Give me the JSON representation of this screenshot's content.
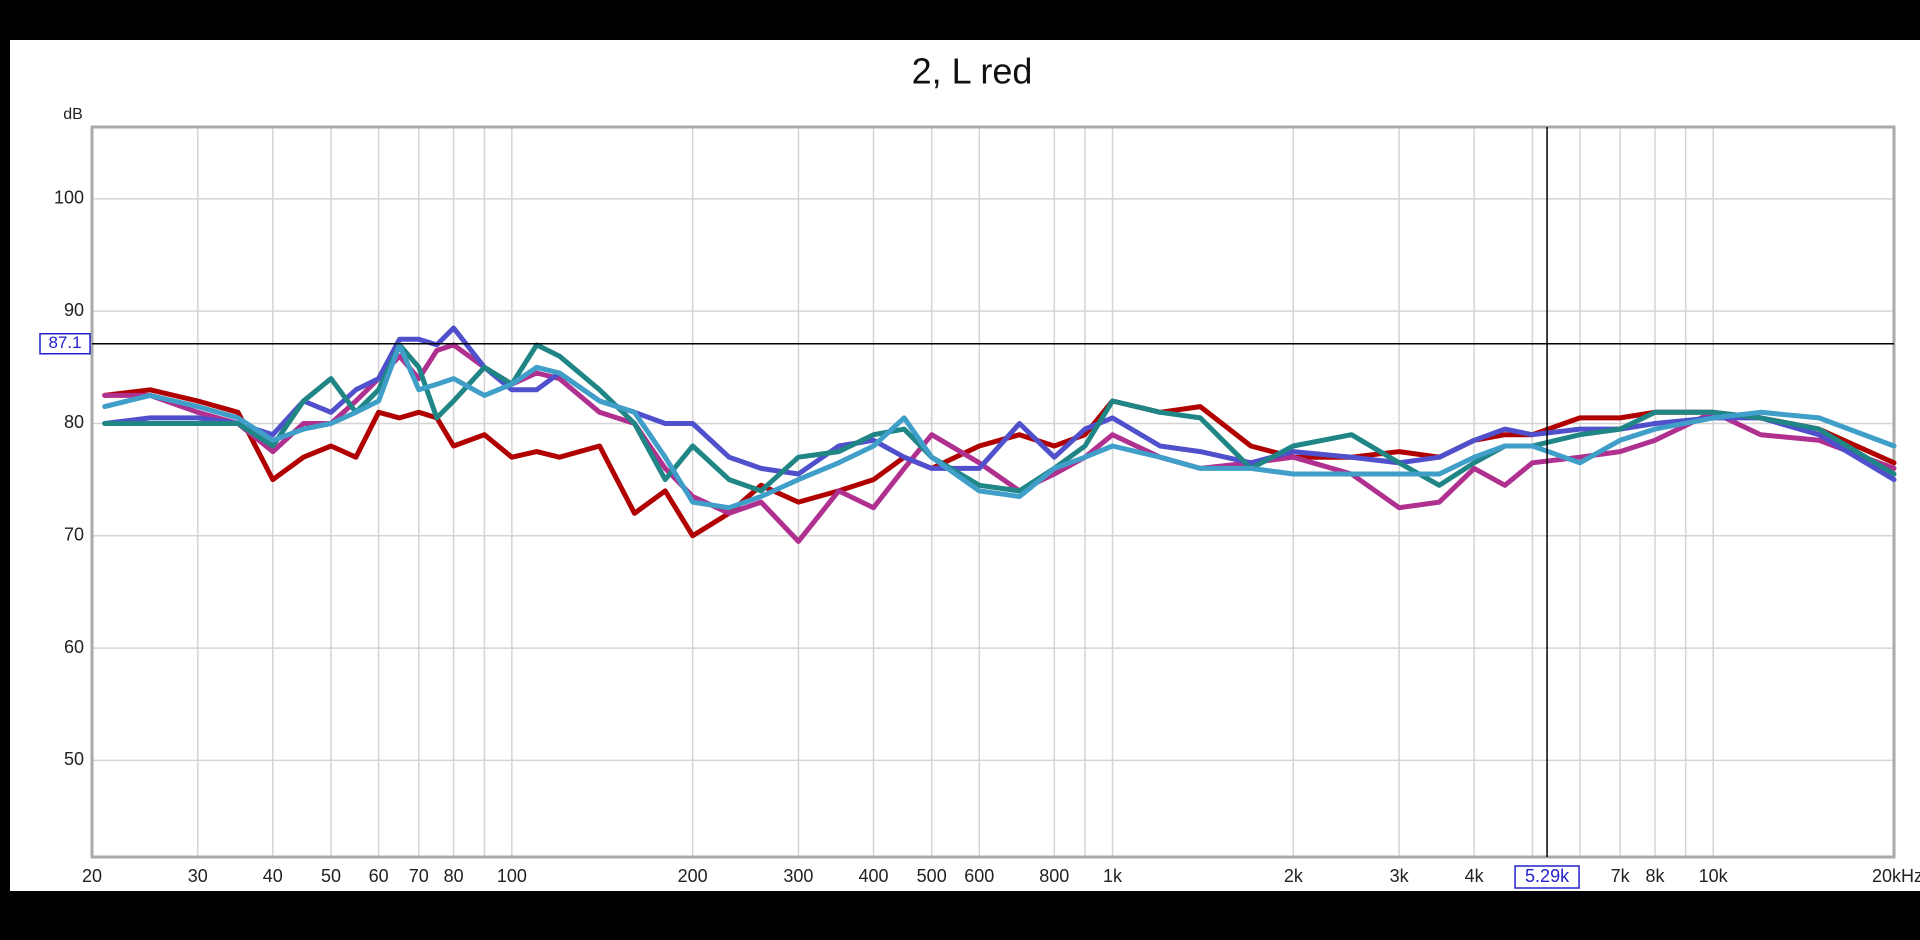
{
  "chart_data": {
    "type": "line",
    "title": "2, L red",
    "y_label": "dB",
    "x": [
      21,
      25,
      30,
      35,
      40,
      45,
      50,
      55,
      60,
      65,
      70,
      75,
      80,
      90,
      100,
      110,
      120,
      140,
      160,
      180,
      200,
      230,
      260,
      300,
      350,
      400,
      450,
      500,
      600,
      700,
      800,
      900,
      1000,
      1200,
      1400,
      1700,
      2000,
      2500,
      3000,
      3500,
      4000,
      4500,
      5000,
      6000,
      7000,
      8000,
      10000,
      12000,
      15000,
      20000
    ],
    "series": [
      {
        "color": "#b00000",
        "values": [
          82.5,
          83,
          82,
          81,
          75,
          77,
          78,
          77,
          81,
          80.5,
          81,
          80.5,
          78,
          79,
          77,
          77.5,
          77,
          78,
          72,
          74,
          70,
          72,
          74.5,
          73,
          74,
          75,
          77,
          76,
          78,
          79,
          78,
          79,
          82,
          81,
          81.5,
          78,
          77,
          77,
          77.5,
          77,
          78.5,
          79,
          79,
          80.5,
          80.5,
          81,
          81,
          80.5,
          79.5,
          76.5
        ]
      },
      {
        "color": "#b0308f",
        "values": [
          82.5,
          82.5,
          81,
          80,
          77.5,
          80,
          80,
          82,
          84,
          86,
          84,
          86.5,
          87,
          85,
          83.5,
          84.5,
          84,
          81,
          80,
          76,
          73.5,
          72,
          73,
          69.5,
          74,
          72.5,
          76,
          79,
          76.5,
          74,
          75.5,
          77,
          79,
          77,
          76,
          76.5,
          77,
          75.5,
          72.5,
          73,
          76,
          74.5,
          76.5,
          77,
          77.5,
          78.5,
          81,
          79,
          78.5,
          76
        ]
      },
      {
        "color": "#5050cc",
        "values": [
          80,
          80.5,
          80.5,
          80,
          79,
          82,
          81,
          83,
          84,
          87.5,
          87.5,
          87,
          88.5,
          85,
          83,
          83,
          84.5,
          82,
          81,
          80,
          80,
          77,
          76,
          75.5,
          78,
          78.5,
          77,
          76,
          76,
          80,
          77,
          79.5,
          80.5,
          78,
          77.5,
          76.5,
          77.5,
          77,
          76.5,
          77,
          78.5,
          79.5,
          79,
          79.5,
          79.5,
          80,
          80.5,
          80.5,
          79,
          75
        ]
      },
      {
        "color": "#1f8585",
        "values": [
          80,
          80,
          80,
          80,
          78,
          82,
          84,
          81,
          83,
          87,
          85,
          80.5,
          82,
          85,
          83.5,
          87,
          86,
          83,
          80,
          75,
          78,
          75,
          74,
          77,
          77.5,
          79,
          79.5,
          77,
          74.5,
          74,
          76,
          78,
          82,
          81,
          80.5,
          76,
          78,
          79,
          76.5,
          74.5,
          76.5,
          78,
          78,
          79,
          79.5,
          81,
          81,
          80.5,
          79.5,
          75.5
        ]
      },
      {
        "color": "#3f9fc8",
        "values": [
          81.5,
          82.5,
          81.5,
          80.5,
          78.5,
          79.5,
          80,
          81,
          82,
          87,
          83,
          83.5,
          84,
          82.5,
          83.5,
          85,
          84.5,
          82,
          81,
          77,
          73,
          72.5,
          73.5,
          75,
          76.5,
          78,
          80.5,
          77,
          74,
          73.5,
          76,
          77,
          78,
          77,
          76,
          76,
          75.5,
          75.5,
          75.5,
          75.5,
          77,
          78,
          78,
          76.5,
          78.5,
          79.5,
          80.5,
          81,
          80.5,
          78
        ]
      }
    ],
    "log_x": true,
    "grid": true,
    "xlim": [
      20,
      20000
    ],
    "ylim": [
      41.4,
      106.4
    ],
    "xticks": [
      20,
      30,
      40,
      50,
      60,
      70,
      80,
      100,
      200,
      300,
      400,
      500,
      600,
      800,
      {
        "value": 1000,
        "label": "1k"
      },
      {
        "value": 2000,
        "label": "2k"
      },
      {
        "value": 3000,
        "label": "3k"
      },
      {
        "value": 4000,
        "label": "4k"
      },
      {
        "value": 7000,
        "label": "7k"
      },
      {
        "value": 8000,
        "label": "8k"
      },
      {
        "value": 10000,
        "label": "10k"
      },
      {
        "value": 20000,
        "label": "20kHz"
      }
    ],
    "xgrid_minor": [
      90,
      900,
      5000,
      6000,
      9000
    ],
    "yticks": [
      50,
      60,
      70,
      80,
      90,
      100
    ],
    "cursor": {
      "x": {
        "value": 5290,
        "label": "5.29k"
      },
      "y": 87.1
    }
  }
}
